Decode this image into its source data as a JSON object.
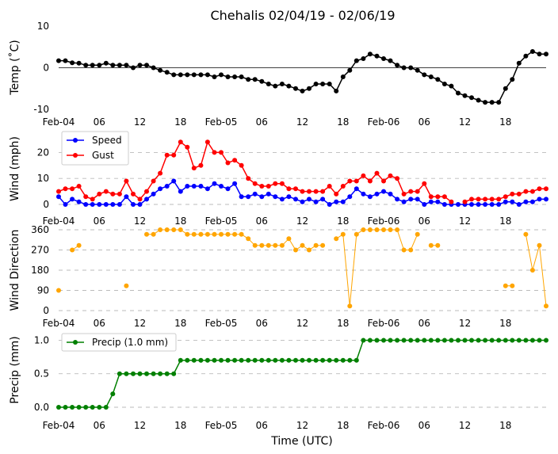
{
  "chart_data": [
    {
      "type": "line",
      "panel": "temp",
      "title": "Chehalis 02/04/19 - 02/06/19",
      "ylabel": "Temp ($^\\circ$C)",
      "ylabel_display": "Temp (˚C)",
      "xlabel": "",
      "ylim": [
        -10,
        10
      ],
      "yticks": [
        -10,
        0,
        10
      ],
      "grid": false,
      "zero_line": true,
      "series": [
        {
          "name": "Temp",
          "color": "#000000",
          "values": [
            1.7,
            1.7,
            1.2,
            1.1,
            0.6,
            0.6,
            0.6,
            1.1,
            0.6,
            0.6,
            0.6,
            0,
            0.6,
            0.6,
            0,
            -0.6,
            -1.1,
            -1.7,
            -1.7,
            -1.7,
            -1.7,
            -1.7,
            -1.7,
            -2.2,
            -1.7,
            -2.2,
            -2.2,
            -2.2,
            -2.8,
            -2.8,
            -3.3,
            -3.9,
            -4.4,
            -3.9,
            -4.4,
            -5,
            -5.6,
            -5,
            -3.9,
            -3.9,
            -3.9,
            -5.6,
            -2.2,
            -0.6,
            1.7,
            2.2,
            3.3,
            2.8,
            2.2,
            1.7,
            0.6,
            0,
            0,
            -0.6,
            -1.7,
            -2.2,
            -2.8,
            -3.9,
            -4.4,
            -6.1,
            -6.7,
            -7.2,
            -7.8,
            -8.3,
            -8.3,
            -8.3,
            -5,
            -2.8,
            1.1,
            2.8,
            3.9,
            3.3,
            3.3
          ]
        }
      ]
    },
    {
      "type": "line",
      "panel": "wind",
      "ylabel": "Wind (mph)",
      "ylim": [
        0,
        25
      ],
      "yticks": [
        0,
        10,
        20
      ],
      "grid": true,
      "legend": "top-left",
      "series": [
        {
          "name": "Speed",
          "color": "#0000ff",
          "values": [
            3,
            0,
            2,
            1,
            0,
            0,
            0,
            0,
            0,
            0,
            3,
            0,
            0,
            2,
            4,
            6,
            7,
            9,
            5,
            7,
            7,
            7,
            6,
            8,
            7,
            6,
            8,
            3,
            3,
            4,
            3,
            4,
            3,
            2,
            3,
            2,
            1,
            2,
            1,
            2,
            0,
            1,
            1,
            3,
            6,
            4,
            3,
            4,
            5,
            4,
            2,
            1,
            2,
            2,
            0,
            1,
            1,
            0,
            0,
            0,
            0,
            0,
            0,
            0,
            0,
            0,
            1,
            1,
            0,
            1,
            1,
            2,
            2
          ]
        },
        {
          "name": "Gust",
          "color": "#ff0000",
          "values": [
            5,
            6,
            6,
            7,
            3,
            2,
            4,
            5,
            4,
            4,
            9,
            4,
            2,
            5,
            9,
            12,
            19,
            19,
            24,
            22,
            14,
            15,
            24,
            20,
            20,
            16,
            17,
            15,
            10,
            8,
            7,
            7,
            8,
            8,
            6,
            6,
            5,
            5,
            5,
            5,
            7,
            4,
            7,
            9,
            9,
            11,
            9,
            12,
            9,
            11,
            10,
            4,
            5,
            5,
            8,
            3,
            3,
            3,
            1,
            null,
            1,
            2,
            2,
            2,
            2,
            2,
            3,
            4,
            4,
            5,
            5,
            6,
            6
          ]
        }
      ]
    },
    {
      "type": "scatter",
      "panel": "direction",
      "ylabel": "Wind Direction",
      "ylim": [
        0,
        360
      ],
      "yticks": [
        0,
        90,
        180,
        270,
        360
      ],
      "grid": true,
      "series": [
        {
          "name": "Direction",
          "color": "#ffa500",
          "values": [
            90,
            null,
            270,
            290,
            null,
            null,
            null,
            null,
            null,
            null,
            110,
            null,
            null,
            340,
            340,
            360,
            360,
            360,
            360,
            340,
            340,
            340,
            340,
            340,
            340,
            340,
            340,
            340,
            320,
            290,
            290,
            290,
            290,
            290,
            320,
            270,
            290,
            270,
            290,
            290,
            null,
            320,
            340,
            20,
            340,
            360,
            360,
            360,
            360,
            360,
            360,
            270,
            270,
            340,
            null,
            290,
            290,
            null,
            null,
            null,
            null,
            null,
            null,
            null,
            null,
            null,
            110,
            110,
            null,
            340,
            180,
            290,
            20
          ]
        }
      ]
    },
    {
      "type": "line",
      "panel": "precip",
      "ylabel": "Precip (mm)",
      "xlabel": "Time (UTC)",
      "ylim": [
        0,
        1.1
      ],
      "yticks": [
        "0.0",
        "0.5",
        "1.0"
      ],
      "grid": true,
      "legend": "top-left",
      "series": [
        {
          "name": "Precip (1.0 mm)",
          "color": "#008000",
          "values": [
            0,
            0,
            0,
            0,
            0,
            0,
            0,
            0,
            0.2,
            0.5,
            0.5,
            0.5,
            0.5,
            0.5,
            0.5,
            0.5,
            0.5,
            0.5,
            0.7,
            0.7,
            0.7,
            0.7,
            0.7,
            0.7,
            0.7,
            0.7,
            0.7,
            0.7,
            0.7,
            0.7,
            0.7,
            0.7,
            0.7,
            0.7,
            0.7,
            0.7,
            0.7,
            0.7,
            0.7,
            0.7,
            0.7,
            0.7,
            0.7,
            0.7,
            0.7,
            1,
            1,
            1,
            1,
            1,
            1,
            1,
            1,
            1,
            1,
            1,
            1,
            1,
            1,
            1,
            1,
            1,
            1,
            1,
            1,
            1,
            1,
            1,
            1,
            1,
            1,
            1,
            1
          ]
        }
      ]
    }
  ],
  "x_axis": {
    "tick_labels": [
      "Feb-04",
      "06",
      "12",
      "18",
      "Feb-05",
      "06",
      "12",
      "18",
      "Feb-06",
      "06",
      "12",
      "18"
    ],
    "tick_hours": [
      0,
      6,
      12,
      18,
      24,
      30,
      36,
      42,
      48,
      54,
      60,
      66
    ],
    "range_hours": [
      0,
      72
    ]
  }
}
